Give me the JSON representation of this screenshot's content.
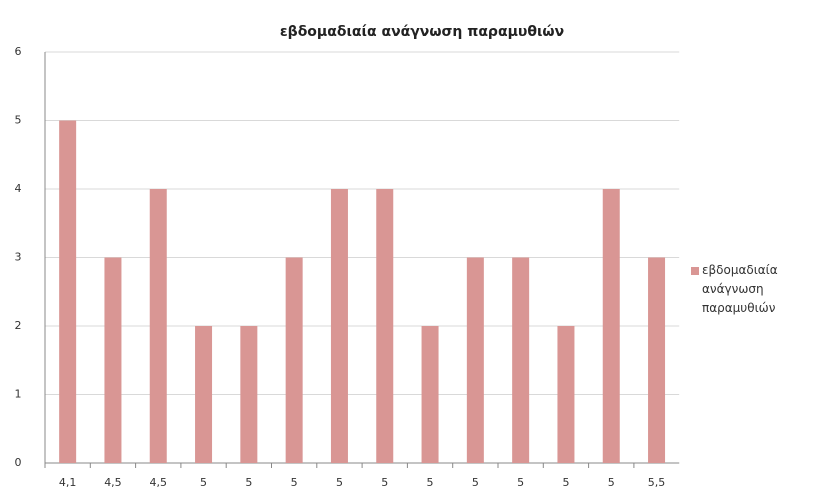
{
  "chart_data": {
    "type": "bar",
    "title": "εβδομαδιαία ανάγνωση παραμυθιών",
    "categories": [
      "4,1",
      "4,5",
      "4,5",
      "5",
      "5",
      "5",
      "5",
      "5",
      "5",
      "5",
      "5",
      "5",
      "5",
      "5,5"
    ],
    "series": [
      {
        "name": "εβδομαδιαία ανάγνωση παραμυθιών",
        "color": "#d99694",
        "values": [
          5,
          3,
          4,
          2,
          2,
          3,
          4,
          4,
          2,
          3,
          3,
          2,
          4,
          3
        ]
      }
    ],
    "ylim": [
      0,
      6
    ],
    "yticks": [
      0,
      1,
      2,
      3,
      4,
      5,
      6
    ],
    "grid": true,
    "legend": "right"
  }
}
